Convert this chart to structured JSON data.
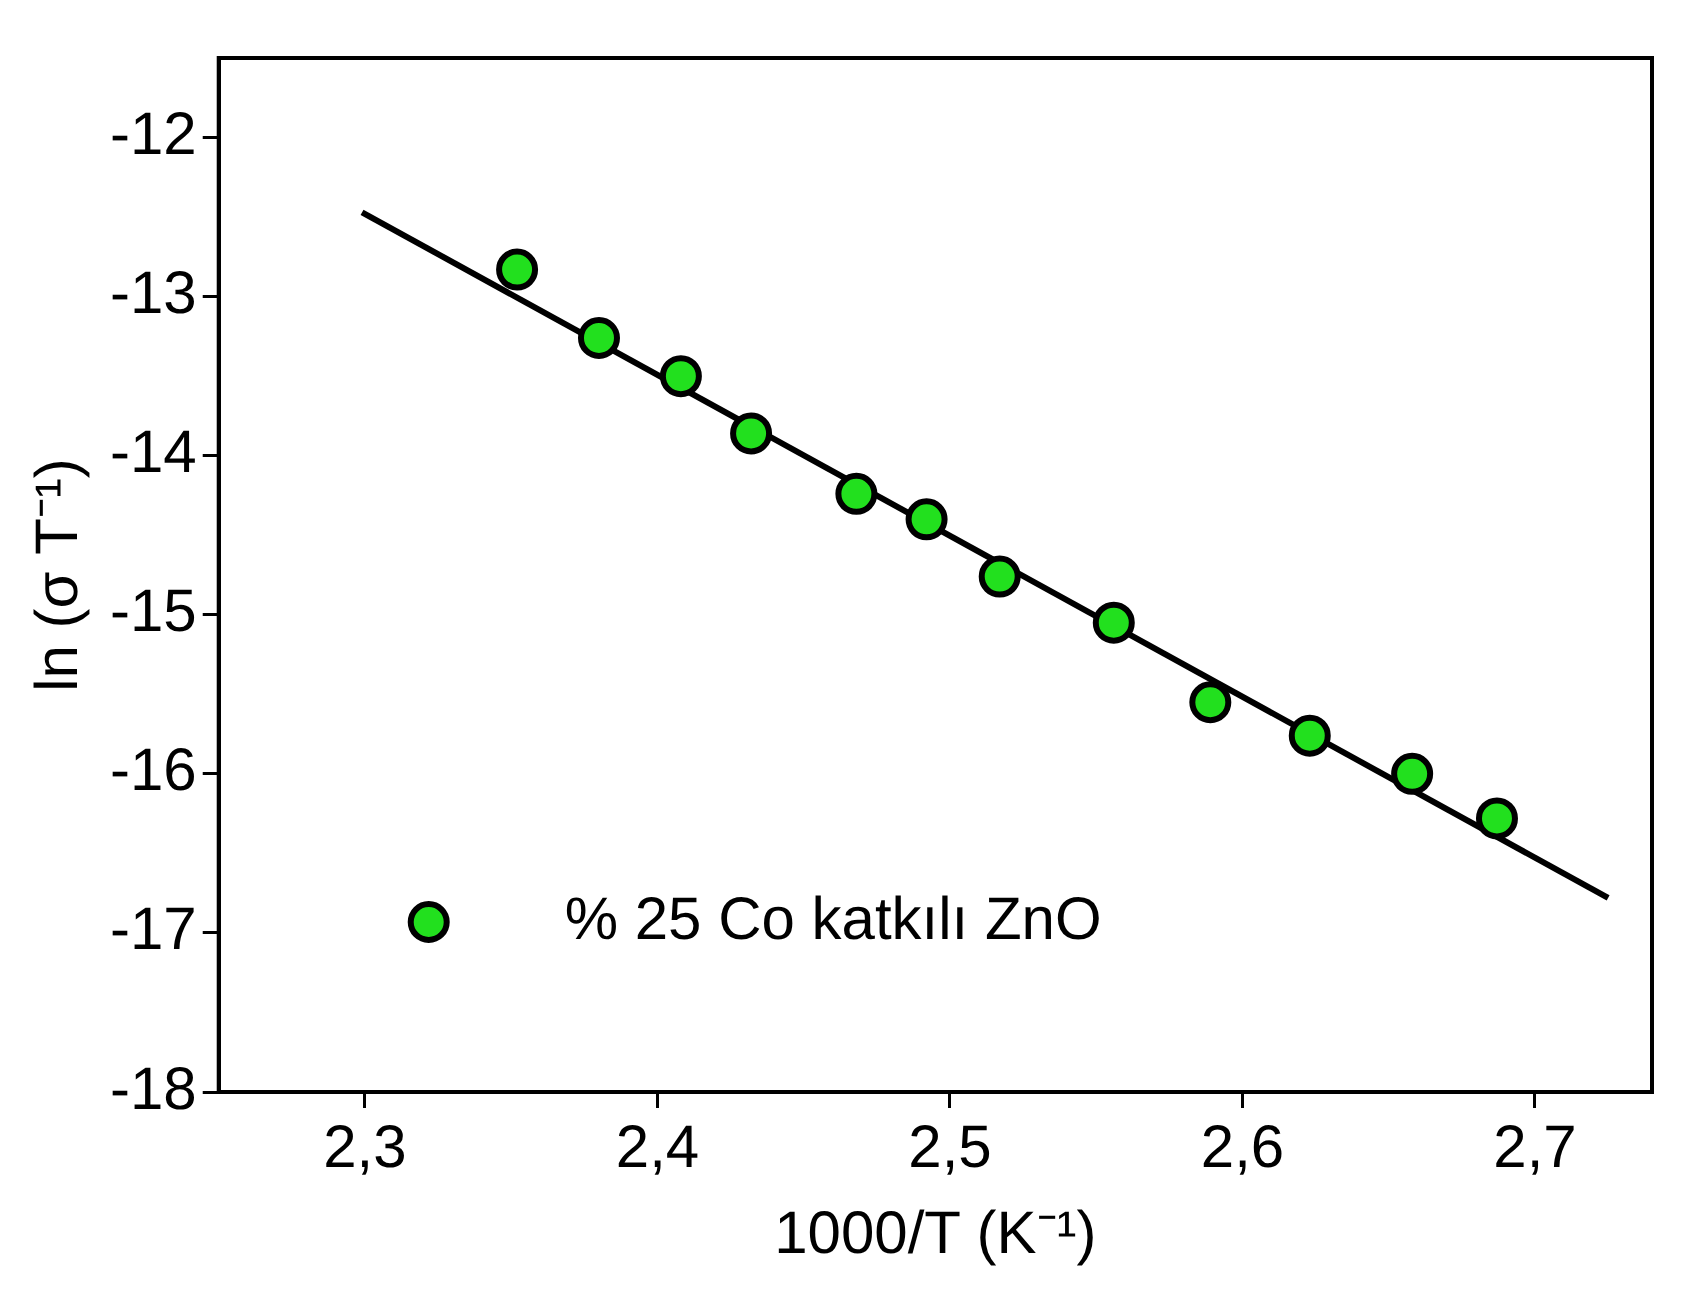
{
  "chart_data": {
    "type": "scatter",
    "xlabel": "1000/T (K⁻¹)",
    "ylabel": "ln (σ T⁻¹)",
    "xlim": [
      2.25,
      2.74
    ],
    "xticks": [
      {
        "value": 2.3,
        "label": "2,3"
      },
      {
        "value": 2.4,
        "label": "2,4"
      },
      {
        "value": 2.5,
        "label": "2,5"
      },
      {
        "value": 2.6,
        "label": "2,6"
      },
      {
        "value": 2.7,
        "label": "2,7"
      }
    ],
    "ylim": [
      -18,
      -11.5
    ],
    "yticks": [
      -18,
      -17,
      -16,
      -15,
      -14,
      -13,
      -12
    ],
    "grid": false,
    "legend": "bottom left",
    "series": [
      {
        "name": "% 25 Co katkılı ZnO",
        "marker": "circle",
        "color": "#22e01e",
        "x": [
          2.352,
          2.38,
          2.408,
          2.432,
          2.468,
          2.492,
          2.517,
          2.556,
          2.589,
          2.623,
          2.658,
          2.687
        ],
        "values": [
          -12.83,
          -13.26,
          -13.5,
          -13.86,
          -14.24,
          -14.4,
          -14.76,
          -15.05,
          -15.55,
          -15.76,
          -16.0,
          -16.28
        ]
      },
      {
        "type": "line",
        "color": "#000000",
        "x": [
          2.299,
          2.725
        ],
        "values": [
          -12.47,
          -16.78
        ]
      }
    ]
  }
}
